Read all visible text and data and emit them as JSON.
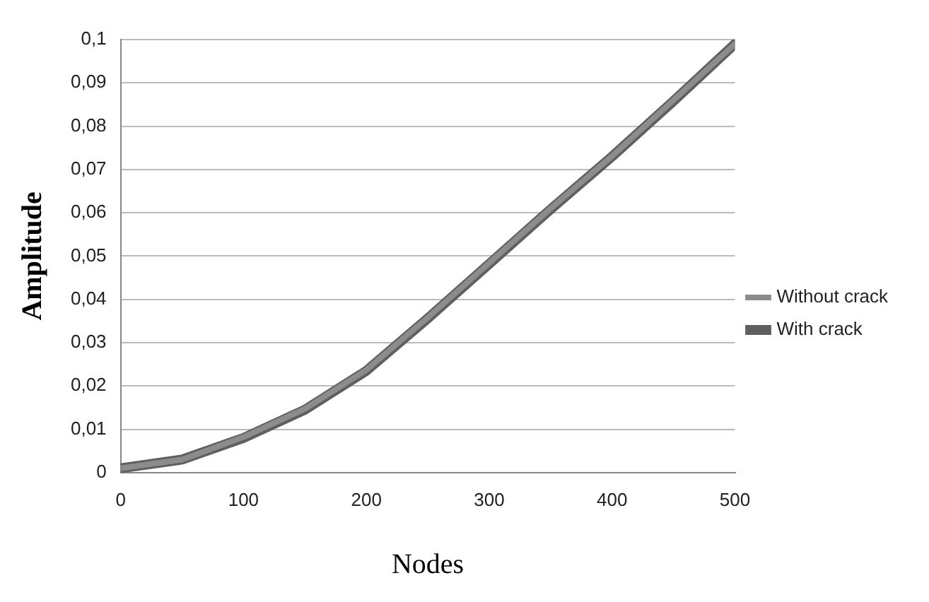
{
  "chart_data": {
    "type": "line",
    "xlabel": "Nodes",
    "ylabel": "Amplitude",
    "xlim": [
      0,
      500
    ],
    "xticks": [
      0,
      100,
      200,
      300,
      400,
      500
    ],
    "ylim": [
      0,
      0.1
    ],
    "yticks": [
      0,
      {
        "value": 0.01,
        "label": "0,01"
      },
      {
        "value": 0.02,
        "label": "0,02"
      },
      {
        "value": 0.03,
        "label": "0,03"
      },
      {
        "value": 0.04,
        "label": "0,04"
      },
      {
        "value": 0.05,
        "label": "0,05"
      },
      {
        "value": 0.06,
        "label": "0,06"
      },
      {
        "value": 0.07,
        "label": "0,07"
      },
      {
        "value": 0.08,
        "label": "0,08"
      },
      {
        "value": 0.09,
        "label": "0,09"
      },
      {
        "value": 0.1,
        "label": "0,1"
      }
    ],
    "x": [
      0,
      50,
      100,
      150,
      200,
      250,
      300,
      350,
      400,
      450,
      500
    ],
    "series": [
      {
        "name": "Without crack",
        "color": "#8c8c8c",
        "values": [
          0.001,
          0.003,
          0.0082,
          0.0147,
          0.0237,
          0.0358,
          0.0484,
          0.061,
          0.0731,
          0.086,
          0.099
        ]
      },
      {
        "name": "With crack",
        "color": "#5f5f5f",
        "values": [
          0.001,
          0.003,
          0.008,
          0.0145,
          0.0235,
          0.0356,
          0.0482,
          0.0608,
          0.073,
          0.0858,
          0.099
        ]
      }
    ],
    "grid": "y",
    "legend": "right",
    "marker": "none",
    "line_style": "solid"
  }
}
